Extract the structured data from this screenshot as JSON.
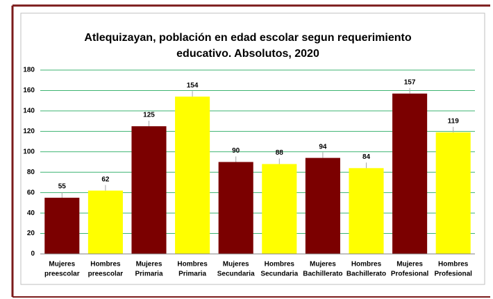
{
  "chart_data": {
    "type": "bar",
    "title": [
      "Atlequizayan, población en edad escolar segun requerimiento",
      "educativo. Absolutos, 2020"
    ],
    "categories": [
      [
        "Mujeres",
        "preescolar"
      ],
      [
        "Hombres",
        "preescolar"
      ],
      [
        "Mujeres",
        "Primaria"
      ],
      [
        "Hombres",
        "Primaria"
      ],
      [
        "Mujeres",
        "Secundaria"
      ],
      [
        "Hombres",
        "Secundaria"
      ],
      [
        "Mujeres",
        "Bachillerato"
      ],
      [
        "Hombres",
        "Bachillerato"
      ],
      [
        "Mujeres",
        "Profesional"
      ],
      [
        "Hombres",
        "Profesional"
      ]
    ],
    "values": [
      55,
      62,
      125,
      154,
      90,
      88,
      94,
      84,
      157,
      119
    ],
    "colors": [
      "#7b0000",
      "#ffff00",
      "#7b0000",
      "#ffff00",
      "#7b0000",
      "#ffff00",
      "#7b0000",
      "#ffff00",
      "#7b0000",
      "#ffff00"
    ],
    "ylim": [
      0,
      180
    ],
    "yticks": [
      0,
      20,
      40,
      60,
      80,
      100,
      120,
      140,
      160,
      180
    ],
    "grid": true,
    "grid_color": "#3cb371"
  }
}
